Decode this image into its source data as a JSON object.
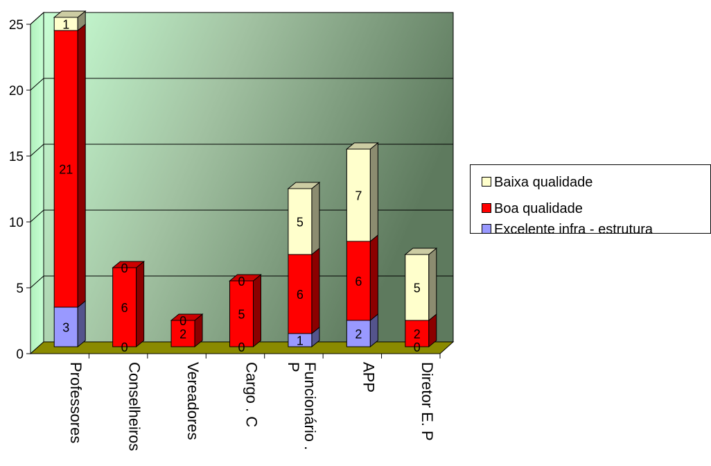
{
  "chart_data": {
    "type": "bar",
    "stacked": true,
    "three_d": true,
    "categories": [
      "Professores",
      "Conselheiros",
      "Vereadores",
      "Cargo . C",
      "Funcionário . P",
      "APP",
      "Diretor E. P"
    ],
    "category_lines": [
      [
        "Professores"
      ],
      [
        "Conselheiros"
      ],
      [
        "Vereadores"
      ],
      [
        "Cargo . C"
      ],
      [
        "Funcionário .",
        "P"
      ],
      [
        "APP"
      ],
      [
        "Diretor E. P"
      ]
    ],
    "series": [
      {
        "name": "Excelente infra - estrutura",
        "color": "#9999ff",
        "values": [
          3,
          0,
          0,
          0,
          1,
          2,
          0
        ]
      },
      {
        "name": "Boa qualidade",
        "color": "#ff0000",
        "values": [
          21,
          6,
          2,
          5,
          6,
          6,
          2
        ]
      },
      {
        "name": "Baixa qualidade",
        "color": "#ffffcc",
        "values": [
          1,
          0,
          0,
          0,
          5,
          7,
          5
        ]
      }
    ],
    "data_labels": [
      [
        "3",
        "21",
        "1"
      ],
      [
        "0",
        "6",
        "0"
      ],
      [
        "",
        "2",
        "0"
      ],
      [
        "0",
        "5",
        "0"
      ],
      [
        "1",
        "6",
        "5"
      ],
      [
        "2",
        "6",
        "7"
      ],
      [
        "0",
        "2",
        "5"
      ]
    ],
    "ylim": [
      0,
      25
    ],
    "yticks": [
      "0",
      "5",
      "10",
      "15",
      "20",
      "25"
    ],
    "grid": true,
    "legend_position": "right",
    "title": "",
    "xlabel": "",
    "ylabel": ""
  },
  "legend": {
    "items": [
      {
        "label": "Baixa qualidade",
        "color": "#ffffcc"
      },
      {
        "label": "Boa qualidade",
        "color": "#ff0000"
      },
      {
        "label": "Excelente infra - estrutura",
        "color": "#9999ff"
      }
    ]
  }
}
